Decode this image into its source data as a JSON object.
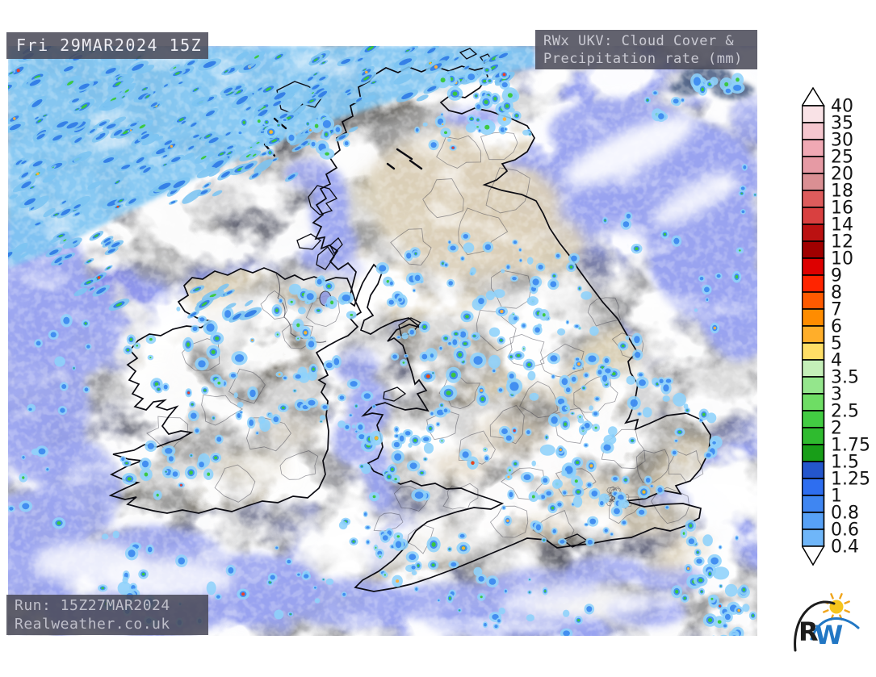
{
  "header": {
    "date_label": "Fri 29MAR2024 15Z",
    "title_line1": "RWx UKV: Cloud Cover &",
    "title_line2": "Precipitation rate (mm)"
  },
  "footer": {
    "run_line1": "Run: 15Z27MAR2024",
    "run_line2": "Realweather.co.uk"
  },
  "legend": {
    "unit_values": [
      "40",
      "35",
      "30",
      "25",
      "20",
      "18",
      "16",
      "14",
      "12",
      "10",
      "9",
      "8",
      "7",
      "6",
      "5",
      "4",
      "3.5",
      "3",
      "2.5",
      "2",
      "1.75",
      "1.5",
      "1.25",
      "1",
      "0.8",
      "0.6",
      "0.4"
    ],
    "box_colors": [
      "#f9e2e6",
      "#f5c6ce",
      "#f0a9b4",
      "#e69aa4",
      "#da8f93",
      "#dd5c5c",
      "#d94040",
      "#bb1111",
      "#a00000",
      "#dd0000",
      "#ff2400",
      "#ff5a00",
      "#ff8c00",
      "#ffae2a",
      "#ffde66",
      "#c4efb8",
      "#94e68c",
      "#6edd64",
      "#42cc42",
      "#2fbb2f",
      "#189e18",
      "#2456cc",
      "#2e6ef0",
      "#3f86f2",
      "#57a1f6",
      "#6fb6f9"
    ],
    "arrow_fill": "#ffffff",
    "outline": "#000000",
    "text_color": "#141414"
  },
  "map_palette": {
    "clear_sea": "#99a3f0",
    "clear_sea_violet": "#8a8fe9",
    "clear_land": "#dacfb7",
    "cloud_dark": "#5a5a5a",
    "cloud_navy": "#47597f",
    "cloud_white": "#ffffff",
    "coastline": "#0b0b12",
    "county_border": "#3c3c48",
    "rain_field": "#7ec5f2",
    "precip_light": "#8ed1fa",
    "precip_streak_light": "#7cc4f1",
    "precip_mid": "#3a87ef",
    "precip_streak_mid": "#2e79e6",
    "precip_green": "#38c838",
    "precip_orange": "#ffb03a",
    "precip_red": "#f33b1e"
  },
  "logo": {
    "letter_r": "R",
    "letter_w": "W",
    "r_color": "#1c1c1c",
    "w_color": "#2277c4",
    "sun_color": "#f6c51c",
    "ray_color": "#f0a51c"
  }
}
